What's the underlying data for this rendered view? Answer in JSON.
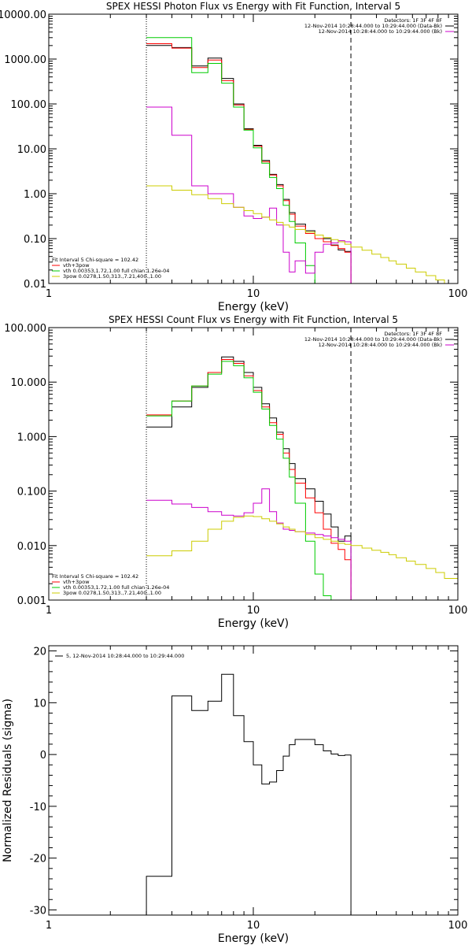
{
  "chart_data": [
    {
      "type": "line",
      "title": "SPEX HESSI Photon Flux vs Energy with Fit Function, Interval 5",
      "xlabel": "Energy (keV)",
      "ylabel": "",
      "xscale": "log",
      "yscale": "log",
      "xlim": [
        1,
        100
      ],
      "ylim": [
        0.01,
        10000
      ],
      "xticks": [
        {
          "v": 1,
          "label": "1"
        },
        {
          "v": 10,
          "label": "10"
        },
        {
          "v": 100,
          "label": "100"
        }
      ],
      "yticks": [
        {
          "v": 0.01,
          "label": "0.01"
        },
        {
          "v": 0.1,
          "label": "0.10"
        },
        {
          "v": 1,
          "label": "1.00"
        },
        {
          "v": 10,
          "label": "10.00"
        },
        {
          "v": 100,
          "label": "100.00"
        },
        {
          "v": 1000,
          "label": "1000.00"
        },
        {
          "v": 10000,
          "label": "10000.00"
        }
      ],
      "vlines": [
        {
          "x": 3.0,
          "style": "dotted"
        },
        {
          "x": 30.0,
          "style": "dashed"
        }
      ],
      "legend_top_right": [
        {
          "text": "Detectors: 1F 3F 4F 8F",
          "color": ""
        },
        {
          "text": "12-Nov-2014 10:28:44.000 to 10:29:44.000 (Data-Bk)",
          "color": "#000000"
        },
        {
          "text": "12-Nov-2014 10:28:44.000 to 10:29:44.000 (Bk)",
          "color": "#cc00cc"
        }
      ],
      "legend_bottom_left": [
        {
          "text": "Fit Interval 5   Chi-square = 102.42",
          "color": ""
        },
        {
          "text": "vth+3pow",
          "color": "#ff0000"
        },
        {
          "text": "vth 0.00353,1.72,1.00  full chian 1.26e-04",
          "color": "#00cc00"
        },
        {
          "text": "3pow 0.0278,1.50,313.,7.21,400.,1.00",
          "color": "#cccc00"
        }
      ],
      "series": [
        {
          "color": "#000000",
          "edges": [
            3.0,
            4.0,
            5.0,
            6.0,
            7.0,
            8.0,
            9.0,
            10.0,
            11.0,
            12.0,
            13.0,
            14.0,
            15.0,
            16.0,
            18.0,
            20.0,
            22.0,
            24.0,
            26.0,
            28.0,
            30.0
          ],
          "values": [
            2000,
            1800,
            700,
            1050,
            370,
            100,
            28,
            12,
            5.5,
            2.7,
            1.6,
            0.75,
            0.38,
            0.21,
            0.15,
            0.12,
            0.1,
            0.072,
            0.056,
            0.052
          ]
        },
        {
          "color": "#ff0000",
          "edges": [
            3.0,
            4.0,
            5.0,
            6.0,
            7.0,
            8.0,
            9.0,
            10.0,
            11.0,
            12.0,
            13.0,
            14.0,
            15.0,
            16.0,
            18.0,
            20.0,
            22.0,
            24.0,
            26.0,
            28.0,
            30.0
          ],
          "values": [
            2200,
            1750,
            650,
            950,
            330,
            95,
            27,
            11.5,
            5.2,
            2.6,
            1.5,
            0.7,
            0.35,
            0.19,
            0.13,
            0.1,
            0.085,
            0.07,
            0.06,
            0.05
          ]
        },
        {
          "color": "#00cc00",
          "edges": [
            3.0,
            4.0,
            5.0,
            6.0,
            7.0,
            8.0,
            9.0,
            10.0,
            11.0,
            12.0,
            13.0,
            14.0,
            15.0,
            16.0,
            18.0,
            20.0
          ],
          "values": [
            3000,
            3000,
            500,
            800,
            290,
            85,
            26,
            10.5,
            4.8,
            2.3,
            1.3,
            0.55,
            0.24,
            0.08,
            0.025
          ]
        },
        {
          "color": "#cc00cc",
          "edges": [
            3.0,
            4.0,
            5.0,
            6.0,
            7.0,
            8.0,
            9.0,
            10.0,
            11.0,
            12.0,
            13.0,
            14.0,
            15.0,
            16.0,
            18.0,
            20.0,
            22.0,
            24.0,
            26.0,
            28.0,
            30.0
          ],
          "values": [
            85,
            20,
            1.5,
            1.0,
            1.0,
            0.5,
            0.32,
            0.28,
            0.3,
            0.48,
            0.2,
            0.05,
            0.018,
            0.032,
            0.017,
            0.05,
            0.075,
            0.08,
            0.09,
            0.085
          ]
        },
        {
          "color": "#cccc00",
          "edges": [
            3.0,
            4.0,
            5.0,
            6.0,
            7.0,
            8.0,
            9.0,
            10.0,
            11.0,
            12.0,
            13.0,
            14.0,
            15.0,
            16.0,
            18.0,
            20.0,
            22.0,
            24.0,
            26.0,
            28.0,
            30.0,
            34.0,
            38.0,
            42.0,
            46.0,
            50.0,
            56.0,
            62.0,
            70.0,
            78.0,
            86.0,
            100.0
          ],
          "values": [
            1.5,
            1.2,
            0.95,
            0.78,
            0.6,
            0.5,
            0.42,
            0.36,
            0.3,
            0.26,
            0.23,
            0.2,
            0.18,
            0.16,
            0.14,
            0.12,
            0.105,
            0.095,
            0.085,
            0.075,
            0.065,
            0.055,
            0.045,
            0.038,
            0.032,
            0.027,
            0.022,
            0.018,
            0.015,
            0.012,
            0.01
          ]
        }
      ]
    },
    {
      "type": "line",
      "title": "SPEX HESSI Count Flux vs Energy with Fit Function, Interval 5",
      "xlabel": "Energy (keV)",
      "ylabel": "",
      "xscale": "log",
      "yscale": "log",
      "xlim": [
        1,
        100
      ],
      "ylim": [
        0.001,
        100
      ],
      "xticks": [
        {
          "v": 1,
          "label": "1"
        },
        {
          "v": 10,
          "label": "10"
        },
        {
          "v": 100,
          "label": "100"
        }
      ],
      "yticks": [
        {
          "v": 0.001,
          "label": "0.001"
        },
        {
          "v": 0.01,
          "label": "0.010"
        },
        {
          "v": 0.1,
          "label": "0.100"
        },
        {
          "v": 1,
          "label": "1.000"
        },
        {
          "v": 10,
          "label": "10.000"
        },
        {
          "v": 100,
          "label": "100.000"
        }
      ],
      "vlines": [
        {
          "x": 3.0,
          "style": "dotted"
        },
        {
          "x": 30.0,
          "style": "dashed"
        }
      ],
      "legend_top_right": [
        {
          "text": "Detectors: 1F 3F 4F 8F",
          "color": ""
        },
        {
          "text": "12-Nov-2014 10:28:44.000 to 10:29:44.000 (Data-Bk)",
          "color": "#000000"
        },
        {
          "text": "12-Nov-2014 10:28:44.000 to 10:29:44.000 (Bk)",
          "color": "#cc00cc"
        }
      ],
      "legend_bottom_left": [
        {
          "text": "Fit Interval 5   Chi-square = 102.42",
          "color": ""
        },
        {
          "text": "vth+3pow",
          "color": "#ff0000"
        },
        {
          "text": "vth 0.00353,1.72,1.00  full chian 1.26e-04",
          "color": "#00cc00"
        },
        {
          "text": "3pow 0.0278,1.50,313.,7.21,400.,1.00",
          "color": "#cccc00"
        }
      ],
      "series": [
        {
          "color": "#000000",
          "edges": [
            3.0,
            4.0,
            5.0,
            6.0,
            7.0,
            8.0,
            9.0,
            10.0,
            11.0,
            12.0,
            13.0,
            14.0,
            15.0,
            16.0,
            18.0,
            20.0,
            22.0,
            24.0,
            26.0,
            28.0,
            30.0
          ],
          "values": [
            1.5,
            3.5,
            8.0,
            15,
            29,
            24,
            15,
            8.0,
            4.0,
            2.2,
            1.2,
            0.6,
            0.32,
            0.17,
            0.11,
            0.065,
            0.038,
            0.022,
            0.012,
            0.015
          ]
        },
        {
          "color": "#ff0000",
          "edges": [
            3.0,
            4.0,
            5.0,
            6.0,
            7.0,
            8.0,
            9.0,
            10.0,
            11.0,
            12.0,
            13.0,
            14.0,
            15.0,
            16.0,
            18.0,
            20.0,
            22.0,
            24.0,
            26.0,
            28.0,
            30.0
          ],
          "values": [
            2.5,
            4.5,
            8.5,
            15,
            26,
            22,
            13,
            7.0,
            3.5,
            1.8,
            1.1,
            0.5,
            0.25,
            0.14,
            0.075,
            0.04,
            0.02,
            0.011,
            0.0085,
            0.0055
          ]
        },
        {
          "color": "#00cc00",
          "edges": [
            3.0,
            4.0,
            5.0,
            6.0,
            7.0,
            8.0,
            9.0,
            10.0,
            11.0,
            12.0,
            13.0,
            14.0,
            15.0,
            16.0,
            18.0,
            20.0,
            22.0,
            24.0
          ],
          "values": [
            2.4,
            4.5,
            8.5,
            14,
            24,
            20,
            12,
            6.5,
            3.2,
            1.6,
            0.9,
            0.4,
            0.18,
            0.06,
            0.012,
            0.003,
            0.0012
          ]
        },
        {
          "color": "#cc00cc",
          "edges": [
            3.0,
            4.0,
            5.0,
            6.0,
            7.0,
            8.0,
            9.0,
            10.0,
            11.0,
            12.0,
            13.0,
            14.0,
            15.0,
            16.0,
            18.0,
            20.0,
            22.0,
            24.0,
            26.0,
            28.0,
            30.0
          ],
          "values": [
            0.068,
            0.058,
            0.05,
            0.042,
            0.036,
            0.035,
            0.04,
            0.06,
            0.11,
            0.042,
            0.026,
            0.02,
            0.019,
            0.018,
            0.017,
            0.016,
            0.015,
            0.014,
            0.013,
            0.012
          ]
        },
        {
          "color": "#cccc00",
          "edges": [
            3.0,
            4.0,
            5.0,
            6.0,
            7.0,
            8.0,
            9.0,
            10.0,
            11.0,
            12.0,
            13.0,
            14.0,
            15.0,
            16.0,
            18.0,
            20.0,
            22.0,
            24.0,
            26.0,
            28.0,
            30.0,
            34.0,
            38.0,
            42.0,
            46.0,
            50.0,
            56.0,
            62.0,
            70.0,
            78.0,
            86.0,
            100.0
          ],
          "values": [
            0.0065,
            0.008,
            0.012,
            0.02,
            0.028,
            0.033,
            0.035,
            0.034,
            0.031,
            0.028,
            0.025,
            0.022,
            0.02,
            0.018,
            0.016,
            0.014,
            0.013,
            0.012,
            0.011,
            0.0105,
            0.01,
            0.009,
            0.0082,
            0.0075,
            0.0068,
            0.006,
            0.0052,
            0.0045,
            0.0038,
            0.0032,
            0.0025
          ]
        }
      ]
    },
    {
      "type": "line",
      "title": "",
      "xlabel": "Energy (keV)",
      "ylabel": "Normalized Residuals (sigma)",
      "xscale": "log",
      "yscale": "linear",
      "xlim": [
        1,
        100
      ],
      "ylim": [
        -31,
        21
      ],
      "xticks": [
        {
          "v": 1,
          "label": "1"
        },
        {
          "v": 10,
          "label": "10"
        },
        {
          "v": 100,
          "label": "100"
        }
      ],
      "yticks": [
        {
          "v": -30,
          "label": "-30"
        },
        {
          "v": -20,
          "label": "-20"
        },
        {
          "v": -10,
          "label": "-10"
        },
        {
          "v": 0,
          "label": "0"
        },
        {
          "v": 10,
          "label": "10"
        },
        {
          "v": 20,
          "label": "20"
        }
      ],
      "vlines": [],
      "legend_top_left": [
        {
          "text": "5, 12-Nov-2014 10:28:44.000 to 10:29:44.000",
          "color": "#000000"
        }
      ],
      "series": [
        {
          "color": "#000000",
          "edges": [
            3.0,
            4.0,
            5.0,
            6.0,
            7.0,
            8.0,
            9.0,
            10.0,
            11.0,
            12.0,
            13.0,
            14.0,
            15.0,
            16.0,
            18.0,
            20.0,
            22.0,
            24.0,
            26.0,
            28.0,
            30.0
          ],
          "values": [
            -23.5,
            11.3,
            8.5,
            10.3,
            15.5,
            7.5,
            2.5,
            -2.0,
            -5.7,
            -5.3,
            -3.1,
            -0.3,
            1.9,
            2.9,
            2.9,
            1.9,
            0.7,
            0.1,
            -0.2,
            -0.1
          ],
          "drop_to_bottom": true
        }
      ]
    }
  ]
}
